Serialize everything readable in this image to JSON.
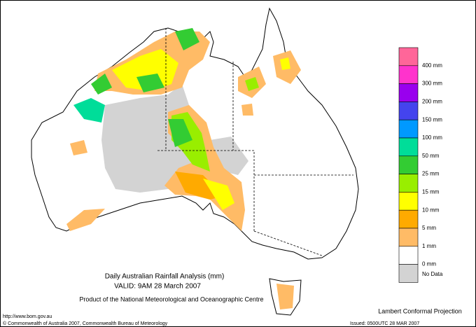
{
  "map": {
    "title": "Daily Australian Rainfall Analysis (mm)",
    "valid": "VALID: 9AM 28 March 2007",
    "product": "Product of the National Meteorological and Oceanographic Centre",
    "projection": "Lambert Conformal Projection",
    "url": "http://www.bom.gov.au",
    "copyright": "© Commonwealth of Australia 2007, Commonwealth Bureau of Meteorology",
    "issued": "Issued: 0500UTC 28 MAR 2007"
  },
  "legend": {
    "colors": [
      "#ff6699",
      "#ff33cc",
      "#9900ee",
      "#4444ee",
      "#0099ff",
      "#00dd99",
      "#33cc33",
      "#99ee00",
      "#ffff00",
      "#ffaa00",
      "#ffbb66",
      "#ffffff",
      "#d3d3d3"
    ],
    "labels": [
      "400 mm",
      "300 mm",
      "200 mm",
      "150 mm",
      "100 mm",
      "50 mm",
      "25 mm",
      "15 mm",
      "10 mm",
      "5 mm",
      "1 mm",
      "0 mm",
      "No Data"
    ]
  }
}
